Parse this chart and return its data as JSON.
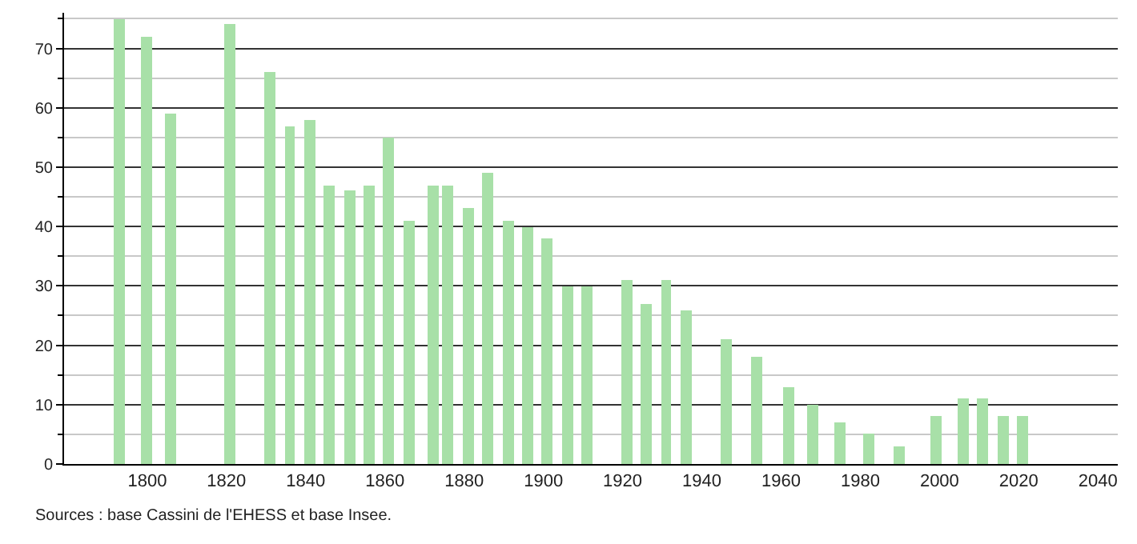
{
  "chart_data": {
    "type": "bar",
    "x": [
      1793,
      1800,
      1806,
      1821,
      1831,
      1836,
      1841,
      1846,
      1851,
      1856,
      1861,
      1866,
      1872,
      1876,
      1881,
      1886,
      1891,
      1896,
      1901,
      1906,
      1911,
      1921,
      1926,
      1931,
      1936,
      1946,
      1954,
      1962,
      1968,
      1975,
      1982,
      1990,
      1999,
      2006,
      2011,
      2016,
      2021
    ],
    "values": [
      75,
      72,
      59,
      74,
      66,
      57,
      58,
      47,
      46,
      47,
      55,
      41,
      47,
      47,
      43,
      49,
      41,
      40,
      38,
      30,
      30,
      31,
      27,
      31,
      26,
      21,
      18,
      13,
      10,
      7,
      5,
      3,
      8,
      11,
      11,
      8,
      8
    ],
    "color": "#a8e0a8",
    "xlim": [
      1779,
      2045
    ],
    "xticks": [
      1800,
      1820,
      1840,
      1860,
      1880,
      1900,
      1920,
      1940,
      1960,
      1980,
      2000,
      2020,
      2040
    ],
    "ylim": [
      0,
      76
    ],
    "yticks": [
      0,
      {
        "value": 5,
        "label": null
      },
      10,
      {
        "value": 15,
        "label": null
      },
      20,
      {
        "value": 25,
        "label": null
      },
      30,
      {
        "value": 35,
        "label": null
      },
      40,
      {
        "value": 45,
        "label": null
      },
      50,
      {
        "value": 55,
        "label": null
      },
      60,
      {
        "value": 65,
        "label": null
      },
      70,
      {
        "value": 75,
        "label": null
      }
    ],
    "grid": "y",
    "legend": false,
    "annotations": [
      "Sources : base Cassini de l'EHESS et base Insee."
    ]
  }
}
